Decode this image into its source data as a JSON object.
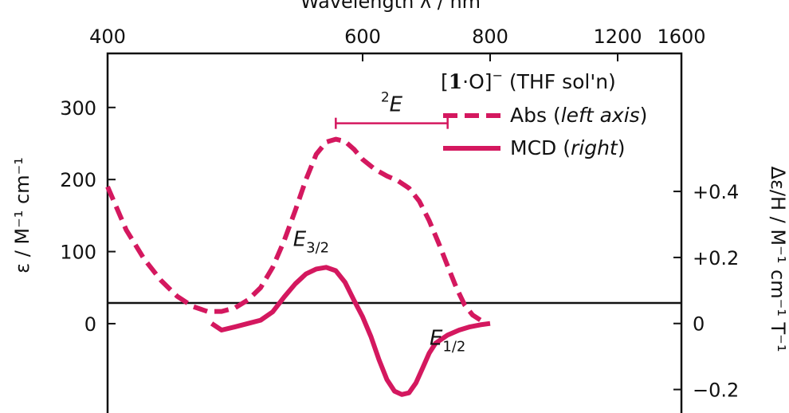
{
  "chart_data": {
    "type": "line",
    "top_axis": {
      "label": "Wavelength λ / nm",
      "ticks": [
        {
          "label": "400",
          "wavelength": 400
        },
        {
          "label": "600",
          "wavelength": 600
        },
        {
          "label": "800",
          "wavelength": 800
        },
        {
          "label": "1200",
          "wavelength": 1200
        },
        {
          "label": "1600",
          "wavelength": 1600
        }
      ]
    },
    "left_axis": {
      "label": "ε / M⁻¹ cm⁻¹",
      "ylim": [
        -145,
        375
      ],
      "ticks": [
        {
          "label": "0",
          "value": 0
        },
        {
          "label": "100",
          "value": 100
        },
        {
          "label": "200",
          "value": 200
        },
        {
          "label": "300",
          "value": 300
        }
      ]
    },
    "right_axis": {
      "label": "Δε/H / M⁻¹ cm⁻¹ T⁻¹",
      "ylim": [
        -0.317,
        0.818
      ],
      "ticks": [
        {
          "label": "−0.2",
          "value": -0.2
        },
        {
          "label": "0",
          "value": 0
        },
        {
          "label": "+0.2",
          "value": 0.2
        },
        {
          "label": "+0.4",
          "value": 0.4
        }
      ]
    },
    "x_unit": "wavelength_nm",
    "legend": {
      "title_parts": [
        "[",
        "1",
        "·O]",
        "−",
        " (THF sol'n)"
      ],
      "position": "top-right",
      "entries": [
        {
          "key": "abs",
          "text_parts": [
            "Abs (",
            "left axis",
            ")"
          ]
        },
        {
          "key": "mcd",
          "text_parts": [
            "MCD (",
            "right",
            ")"
          ]
        }
      ]
    },
    "annotations": [
      {
        "key": "E2",
        "sup": "2",
        "main": "E",
        "sub": "",
        "range_wavelength": [
          570,
          720
        ],
        "y_left": 278
      },
      {
        "key": "E32",
        "sup": "",
        "main": "E",
        "sub": "3/2",
        "at_wavelength": 545,
        "y_right": 0.235
      },
      {
        "key": "E12",
        "sup": "",
        "main": "E",
        "sub": "1/2",
        "at_wavelength": 720,
        "y_right": -0.065
      }
    ],
    "colors": {
      "series": "#d4185f",
      "axis": "#111111"
    },
    "series": [
      {
        "key": "abs",
        "name": "Abs (left axis)",
        "axis": "left",
        "style": "dashed",
        "points": [
          {
            "x": 400,
            "y": 190
          },
          {
            "x": 410,
            "y": 130
          },
          {
            "x": 420,
            "y": 90
          },
          {
            "x": 430,
            "y": 60
          },
          {
            "x": 440,
            "y": 38
          },
          {
            "x": 450,
            "y": 24
          },
          {
            "x": 460,
            "y": 17
          },
          {
            "x": 470,
            "y": 17
          },
          {
            "x": 480,
            "y": 22
          },
          {
            "x": 490,
            "y": 33
          },
          {
            "x": 500,
            "y": 50
          },
          {
            "x": 510,
            "y": 78
          },
          {
            "x": 520,
            "y": 115
          },
          {
            "x": 530,
            "y": 157
          },
          {
            "x": 540,
            "y": 200
          },
          {
            "x": 550,
            "y": 235
          },
          {
            "x": 560,
            "y": 252
          },
          {
            "x": 570,
            "y": 256
          },
          {
            "x": 580,
            "y": 253
          },
          {
            "x": 590,
            "y": 242
          },
          {
            "x": 600,
            "y": 228
          },
          {
            "x": 615,
            "y": 214
          },
          {
            "x": 630,
            "y": 205
          },
          {
            "x": 645,
            "y": 198
          },
          {
            "x": 660,
            "y": 188
          },
          {
            "x": 675,
            "y": 170
          },
          {
            "x": 690,
            "y": 143
          },
          {
            "x": 705,
            "y": 112
          },
          {
            "x": 720,
            "y": 80
          },
          {
            "x": 735,
            "y": 50
          },
          {
            "x": 750,
            "y": 26
          },
          {
            "x": 765,
            "y": 12
          },
          {
            "x": 780,
            "y": 5
          }
        ]
      },
      {
        "key": "mcd",
        "name": "MCD (right)",
        "axis": "right",
        "style": "solid",
        "points": [
          {
            "x": 463,
            "y": 0.0
          },
          {
            "x": 470,
            "y": -0.02
          },
          {
            "x": 480,
            "y": -0.01
          },
          {
            "x": 490,
            "y": 0.0
          },
          {
            "x": 500,
            "y": 0.01
          },
          {
            "x": 510,
            "y": 0.035
          },
          {
            "x": 520,
            "y": 0.08
          },
          {
            "x": 530,
            "y": 0.12
          },
          {
            "x": 540,
            "y": 0.15
          },
          {
            "x": 550,
            "y": 0.165
          },
          {
            "x": 560,
            "y": 0.17
          },
          {
            "x": 570,
            "y": 0.16
          },
          {
            "x": 580,
            "y": 0.125
          },
          {
            "x": 590,
            "y": 0.07
          },
          {
            "x": 600,
            "y": 0.02
          },
          {
            "x": 610,
            "y": -0.04
          },
          {
            "x": 620,
            "y": -0.11
          },
          {
            "x": 630,
            "y": -0.17
          },
          {
            "x": 640,
            "y": -0.205
          },
          {
            "x": 650,
            "y": -0.215
          },
          {
            "x": 660,
            "y": -0.21
          },
          {
            "x": 670,
            "y": -0.18
          },
          {
            "x": 680,
            "y": -0.135
          },
          {
            "x": 690,
            "y": -0.09
          },
          {
            "x": 700,
            "y": -0.06
          },
          {
            "x": 720,
            "y": -0.035
          },
          {
            "x": 740,
            "y": -0.02
          },
          {
            "x": 760,
            "y": -0.01
          },
          {
            "x": 780,
            "y": -0.004
          },
          {
            "x": 800,
            "y": 0.0
          }
        ]
      }
    ]
  }
}
